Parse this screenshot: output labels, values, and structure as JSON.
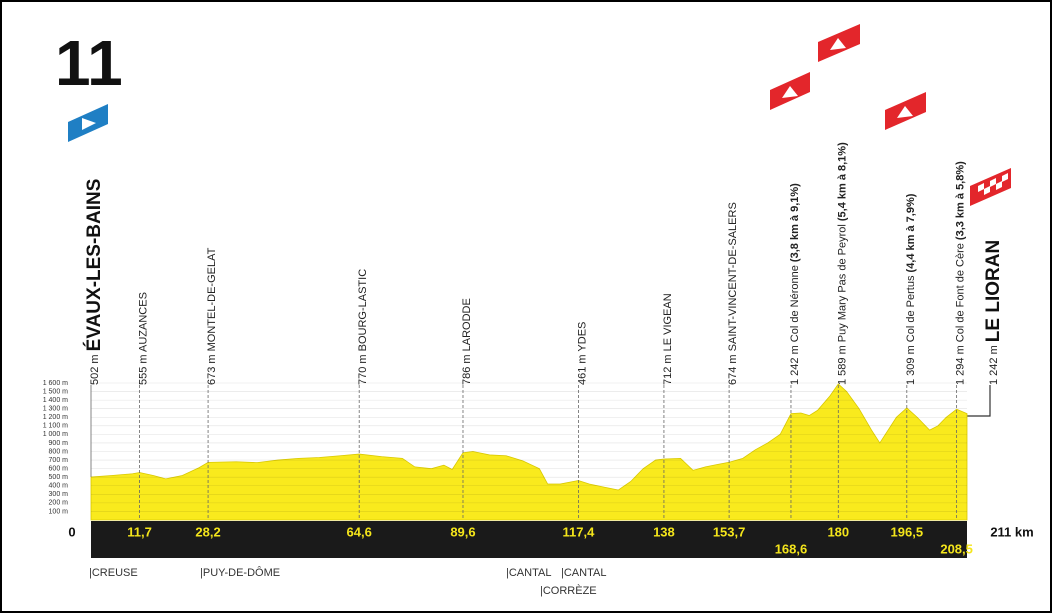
{
  "chart_data": {
    "type": "area",
    "stage": "11",
    "color": "#f9ea1d",
    "grid": true,
    "xlim": [
      0,
      211
    ],
    "ylim": [
      0,
      1600
    ],
    "yticks": [
      {
        "value": 100,
        "label": "100 m"
      },
      {
        "value": 200,
        "label": "200 m"
      },
      {
        "value": 300,
        "label": "300 m"
      },
      {
        "value": 400,
        "label": "400 m"
      },
      {
        "value": 500,
        "label": "500 m"
      },
      {
        "value": 600,
        "label": "600 m"
      },
      {
        "value": 700,
        "label": "700 m"
      },
      {
        "value": 800,
        "label": "800 m"
      },
      {
        "value": 900,
        "label": "900 m"
      },
      {
        "value": 1000,
        "label": "1 000 m"
      },
      {
        "value": 1100,
        "label": "1 100 m"
      },
      {
        "value": 1200,
        "label": "1 200 m"
      },
      {
        "value": 1300,
        "label": "1 300 m"
      },
      {
        "value": 1400,
        "label": "1 400 m"
      },
      {
        "value": 1500,
        "label": "1 500 m"
      },
      {
        "value": 1600,
        "label": "1 600 m"
      }
    ],
    "x": [
      0,
      5,
      10,
      11.7,
      15,
      18,
      22,
      26,
      28.2,
      35,
      40,
      45,
      50,
      55,
      60,
      64.6,
      70,
      75,
      78,
      82,
      85,
      87,
      89.6,
      92,
      96,
      100,
      104,
      108,
      110,
      113,
      117.4,
      120,
      124,
      127,
      130,
      133,
      136,
      138,
      142,
      145,
      148,
      151,
      153.7,
      157,
      160,
      163,
      166,
      168.6,
      171,
      173,
      175,
      178,
      180,
      182,
      185,
      188,
      190,
      192,
      194,
      196.5,
      199,
      202,
      204,
      206,
      208.5,
      211
    ],
    "values": [
      502,
      520,
      540,
      555,
      520,
      480,
      520,
      610,
      673,
      680,
      670,
      700,
      720,
      730,
      750,
      770,
      740,
      720,
      620,
      600,
      640,
      590,
      786,
      800,
      760,
      750,
      690,
      600,
      420,
      420,
      461,
      420,
      380,
      350,
      450,
      600,
      700,
      712,
      720,
      580,
      620,
      650,
      674,
      720,
      820,
      900,
      1000,
      1242,
      1250,
      1220,
      1280,
      1450,
      1589,
      1500,
      1300,
      1050,
      900,
      1050,
      1200,
      1309,
      1200,
      1050,
      1100,
      1200,
      1294,
      1242
    ],
    "waypoints": [
      {
        "km": 0,
        "altitude": {
          "value": 502,
          "label": "502 m"
        },
        "name": "ÉVAUX-LES-BAINS"
      },
      {
        "km": {
          "value": 11.7,
          "label": "11,7"
        },
        "altitude": {
          "value": 555,
          "label": "555 m"
        },
        "name": "AUZANCES"
      },
      {
        "km": {
          "value": 28.2,
          "label": "28,2"
        },
        "altitude": {
          "value": 673,
          "label": "673 m"
        },
        "name": "MONTEL-DE-GELAT"
      },
      {
        "km": {
          "value": 64.6,
          "label": "64,6"
        },
        "altitude": {
          "value": 770,
          "label": "770 m"
        },
        "name": "BOURG-LASTIC"
      },
      {
        "km": {
          "value": 89.6,
          "label": "89,6"
        },
        "altitude": {
          "value": 786,
          "label": "786 m"
        },
        "name": "LARODDE"
      },
      {
        "km": {
          "value": 117.4,
          "label": "117,4"
        },
        "altitude": {
          "value": 461,
          "label": "461 m"
        },
        "name": "YDES"
      },
      {
        "km": 138,
        "altitude": {
          "value": 712,
          "label": "712 m"
        },
        "name": "LE VIGEAN"
      },
      {
        "km": {
          "value": 153.7,
          "label": "153,7"
        },
        "altitude": {
          "value": 674,
          "label": "674 m"
        },
        "name": "SAINT-VINCENT-DE-SALERS"
      },
      {
        "km": {
          "value": 168.6,
          "label": "168,6"
        },
        "altitude": {
          "value": 1242,
          "label": "1 242 m"
        },
        "name": "Col de Néronne",
        "climb": "(3,8 km à 9,1%)"
      },
      {
        "km": 180,
        "altitude": {
          "value": 1589,
          "label": "1 589 m"
        },
        "name": "Puy Mary Pas de Peyrol",
        "climb": "(5,4 km à 8,1%)"
      },
      {
        "km": {
          "value": 196.5,
          "label": "196,5"
        },
        "altitude": {
          "value": 1309,
          "label": "1 309 m"
        },
        "name": "Col de Pertus",
        "climb": "(4,4 km à 7,9%)"
      },
      {
        "km": {
          "value": 208.5,
          "label": "208,5"
        },
        "altitude": {
          "value": 1294,
          "label": "1 294 m"
        },
        "name": "Col de Font de Cère",
        "climb": "(3,3 km à 5,8%)"
      },
      {
        "km": {
          "value": 211,
          "label": "211 km"
        },
        "altitude": {
          "value": 1242,
          "label": "1 242 m"
        },
        "name": "LE LIORAN"
      }
    ],
    "departments": [
      "|CREUSE",
      "|PUY-DE-DÔME",
      "|CANTAL",
      "|CANTAL",
      "|CORRÈZE"
    ]
  }
}
